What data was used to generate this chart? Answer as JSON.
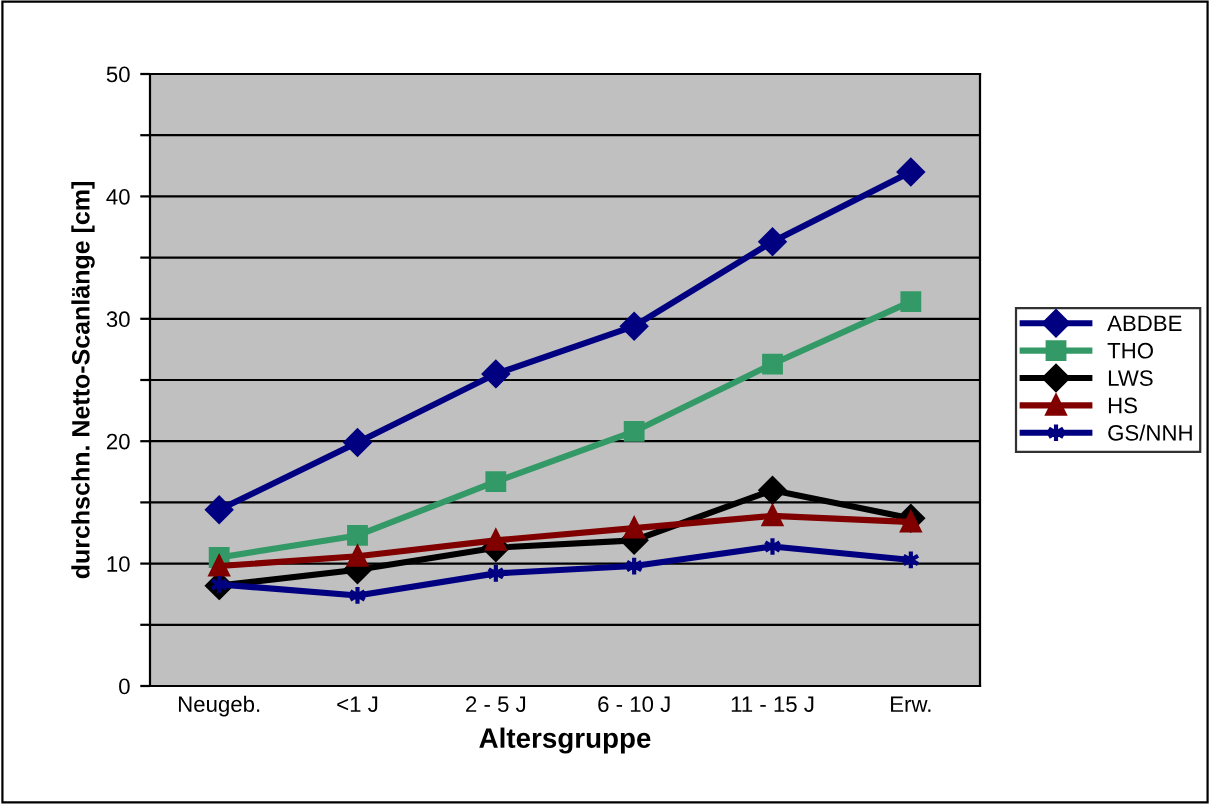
{
  "chart_data": {
    "type": "line",
    "xlabel": "Altersgruppe",
    "ylabel": "durchschn. Netto-Scanlänge [cm]",
    "categories": [
      "Neugeb.",
      "<1 J",
      "2 - 5 J",
      "6 - 10 J",
      "11 - 15 J",
      "Erw."
    ],
    "ylim": [
      0,
      50
    ],
    "yticks": [
      0,
      {
        "value": 5,
        "label": null
      },
      10,
      {
        "value": 15,
        "label": null
      },
      20,
      {
        "value": 25,
        "label": null
      },
      30,
      {
        "value": 35,
        "label": null
      },
      40,
      {
        "value": 45,
        "label": null
      },
      50
    ],
    "grid": "y",
    "legend": "right",
    "line_style": "solid",
    "series": [
      {
        "name": "ABDBE",
        "color": "#000080",
        "marker": "diamond",
        "values": [
          14.4,
          19.9,
          25.5,
          29.4,
          36.3,
          42.0
        ]
      },
      {
        "name": "THO",
        "color": "#339966",
        "marker": "square",
        "values": [
          10.5,
          12.3,
          16.7,
          20.8,
          26.3,
          31.4
        ]
      },
      {
        "name": "LWS",
        "color": "#000000",
        "marker": "diamond",
        "values": [
          8.2,
          9.5,
          11.3,
          11.9,
          16.0,
          13.7
        ]
      },
      {
        "name": "HS",
        "color": "#800000",
        "marker": "triangle",
        "values": [
          9.8,
          10.6,
          11.9,
          12.9,
          13.9,
          13.4
        ]
      },
      {
        "name": "GS/NNH",
        "color": "#000080",
        "marker": "cross",
        "values": [
          8.3,
          7.4,
          9.2,
          9.8,
          11.4,
          10.3
        ]
      }
    ]
  }
}
